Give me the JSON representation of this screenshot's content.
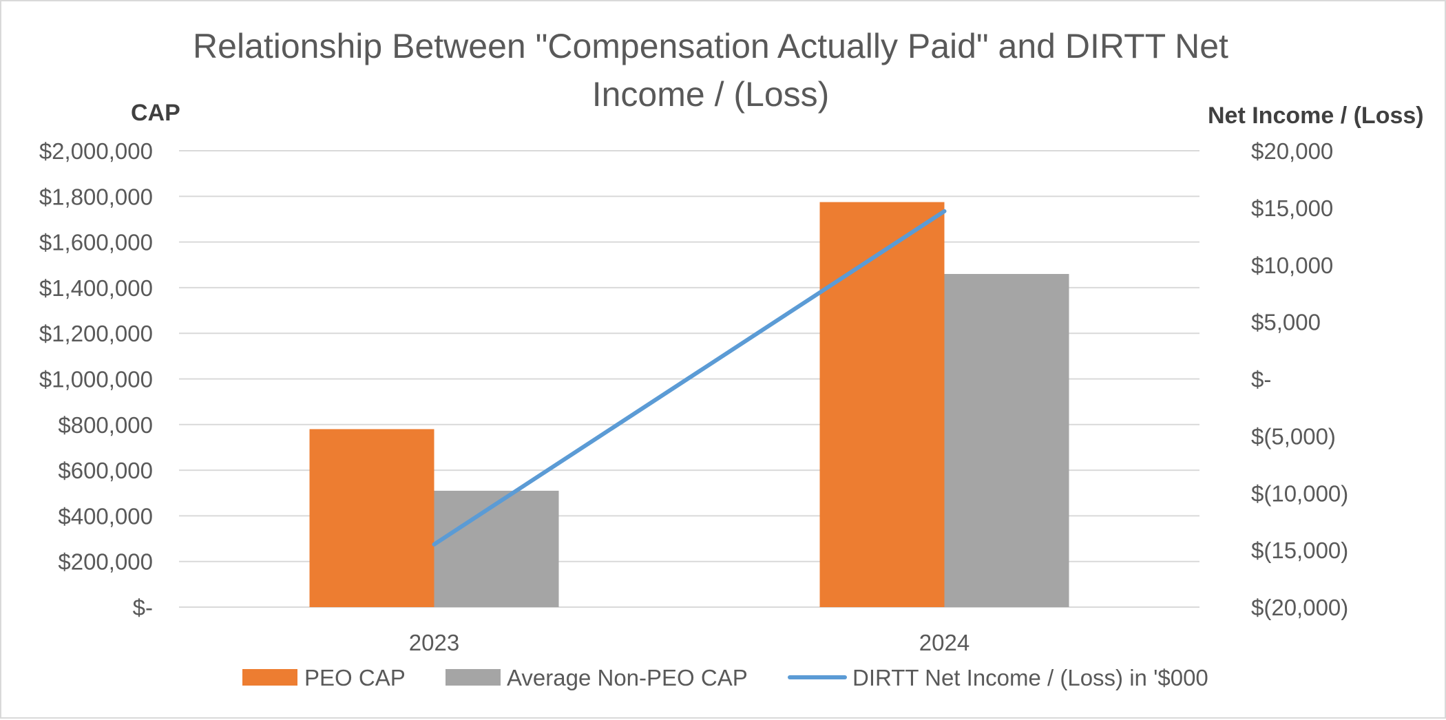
{
  "chart_data": {
    "type": "bar",
    "title": "Relationship Between \"Compensation Actually Paid\" and DIRTT Net Income / (Loss)",
    "title_lines": [
      "Relationship Between \"Compensation Actually Paid\" and DIRTT Net",
      "Income / (Loss)"
    ],
    "categories": [
      "2023",
      "2024"
    ],
    "ylabel": "CAP",
    "y2label": "Net Income / (Loss)",
    "ylim": [
      0,
      2000000
    ],
    "y2lim": [
      -20000,
      20000
    ],
    "y_ticks": [
      {
        "value": 0,
        "label": "$-"
      },
      {
        "value": 200000,
        "label": "$200,000"
      },
      {
        "value": 400000,
        "label": "$400,000"
      },
      {
        "value": 600000,
        "label": "$600,000"
      },
      {
        "value": 800000,
        "label": "$800,000"
      },
      {
        "value": 1000000,
        "label": "$1,000,000"
      },
      {
        "value": 1200000,
        "label": "$1,200,000"
      },
      {
        "value": 1400000,
        "label": "$1,400,000"
      },
      {
        "value": 1600000,
        "label": "$1,600,000"
      },
      {
        "value": 1800000,
        "label": "$1,800,000"
      },
      {
        "value": 2000000,
        "label": "$2,000,000"
      }
    ],
    "y2_ticks": [
      {
        "value": -20000,
        "label": "$(20,000)"
      },
      {
        "value": -15000,
        "label": "$(15,000)"
      },
      {
        "value": -10000,
        "label": "$(10,000)"
      },
      {
        "value": -5000,
        "label": "$(5,000)"
      },
      {
        "value": 0,
        "label": "$-"
      },
      {
        "value": 5000,
        "label": "$5,000"
      },
      {
        "value": 10000,
        "label": "$10,000"
      },
      {
        "value": 15000,
        "label": "$15,000"
      },
      {
        "value": 20000,
        "label": "$20,000"
      }
    ],
    "series": [
      {
        "name": "PEO CAP",
        "kind": "bar",
        "axis": "left",
        "color": "#ED7D31",
        "values": [
          780000,
          1775000
        ]
      },
      {
        "name": "Average Non-PEO CAP",
        "kind": "bar",
        "axis": "left",
        "color": "#A5A5A5",
        "values": [
          510000,
          1460000
        ]
      },
      {
        "name": "DIRTT Net Income / (Loss) in '$000",
        "kind": "line",
        "axis": "right",
        "color": "#5B9BD5",
        "values": [
          -14500,
          14700
        ]
      }
    ],
    "grid": true,
    "legend_position": "bottom"
  }
}
